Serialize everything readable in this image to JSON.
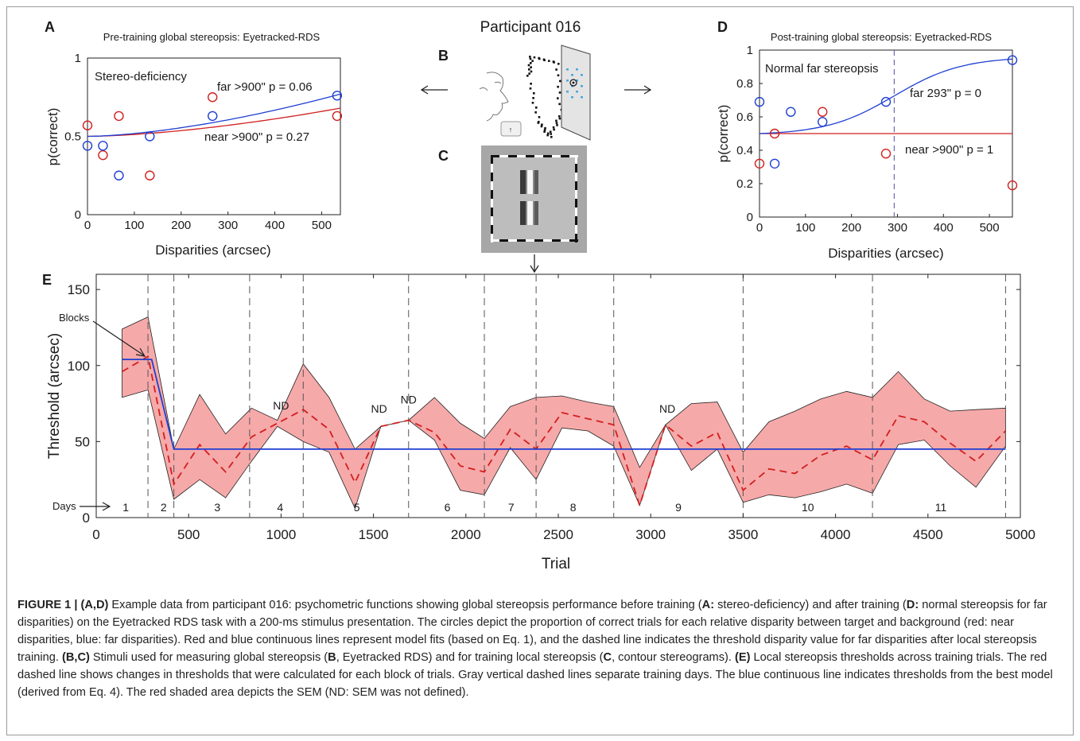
{
  "panel_letters": {
    "a": "A",
    "b": "B",
    "c": "C",
    "d": "D",
    "e": "E"
  },
  "participant_title": "Participant 016",
  "chart_data": [
    {
      "id": "A",
      "type": "scatter",
      "title": "Pre-training global stereopsis: Eyetracked-RDS",
      "xlabel": "Disparities (arcsec)",
      "ylabel": "p(correct)",
      "xlim": [
        0,
        540
      ],
      "ylim": [
        0,
        1
      ],
      "xticks": [
        0,
        100,
        200,
        300,
        400,
        500
      ],
      "yticks": [
        0,
        0.5,
        1
      ],
      "ytick_labels": [
        "0",
        "0.5",
        "1"
      ],
      "annotation": "Stereo-deficiency",
      "far_label": "far >900\"   p = 0.06",
      "near_label": "near >900\"   p = 0.27",
      "threshold_line": null,
      "near_points": [
        [
          0,
          0.57
        ],
        [
          33,
          0.38
        ],
        [
          67,
          0.63
        ],
        [
          133,
          0.25
        ],
        [
          267,
          0.75
        ],
        [
          533,
          0.63
        ]
      ],
      "far_points": [
        [
          0,
          0.44
        ],
        [
          33,
          0.44
        ],
        [
          67,
          0.25
        ],
        [
          133,
          0.5
        ],
        [
          267,
          0.63
        ],
        [
          533,
          0.76
        ]
      ],
      "near_fit": {
        "base": 0.5,
        "max": 0.68
      },
      "far_fit": {
        "base": 0.5,
        "max": 0.77
      },
      "colors": {
        "near": "#d21f1f",
        "far": "#1f3fd2"
      }
    },
    {
      "id": "D",
      "type": "scatter",
      "title": "Post-training global stereopsis: Eyetracked-RDS",
      "xlabel": "Disparities (arcsec)",
      "ylabel": "p(correct)",
      "xlim": [
        0,
        550
      ],
      "ylim": [
        0,
        1
      ],
      "xticks": [
        0,
        100,
        200,
        300,
        400,
        500
      ],
      "yticks": [
        0,
        0.2,
        0.4,
        0.6,
        0.8,
        1
      ],
      "ytick_labels": [
        "0",
        "0.2",
        "0.4",
        "0.6",
        "0.8",
        "1"
      ],
      "annotation": "Normal far stereopsis",
      "far_label": "far 293\"   p = 0",
      "near_label": "near >900\"  p = 1",
      "threshold_line": 293,
      "near_points": [
        [
          0,
          0.32
        ],
        [
          33,
          0.5
        ],
        [
          137,
          0.63
        ],
        [
          275,
          0.38
        ],
        [
          550,
          0.19
        ]
      ],
      "far_points": [
        [
          0,
          0.69
        ],
        [
          33,
          0.32
        ],
        [
          68,
          0.63
        ],
        [
          137,
          0.57
        ],
        [
          275,
          0.69
        ],
        [
          550,
          0.94
        ]
      ],
      "near_fit": {
        "base": 0.5,
        "max": 0.5
      },
      "far_fit": {
        "base": 0.5,
        "max": 0.96,
        "mid": 293
      },
      "colors": {
        "near": "#d21f1f",
        "far": "#1f3fd2"
      }
    },
    {
      "id": "E",
      "type": "line",
      "xlabel": "Trial",
      "ylabel": "Threshold (arcsec)",
      "xlim": [
        0,
        5000
      ],
      "ylim": [
        0,
        160
      ],
      "xticks": [
        0,
        500,
        1000,
        1500,
        2000,
        2500,
        3000,
        3500,
        4000,
        4500,
        5000
      ],
      "yticks": [
        0,
        50,
        100,
        150
      ],
      "day_boundaries": [
        280,
        420,
        830,
        1120,
        1690,
        2100,
        2380,
        2800,
        3500,
        4200,
        4920
      ],
      "day_labels": [
        {
          "label": "1",
          "x": 160
        },
        {
          "label": "2",
          "x": 365
        },
        {
          "label": "3",
          "x": 655
        },
        {
          "label": "4",
          "x": 995
        },
        {
          "label": "5",
          "x": 1410
        },
        {
          "label": "6",
          "x": 1900
        },
        {
          "label": "7",
          "x": 2245
        },
        {
          "label": "8",
          "x": 2580
        },
        {
          "label": "9",
          "x": 3150
        },
        {
          "label": "10",
          "x": 3850
        },
        {
          "label": "11",
          "x": 4570
        }
      ],
      "days_label": "Days",
      "blocks_label": "Blocks",
      "nd_label": "ND",
      "nd_markers": [
        {
          "x": 1000,
          "y": 68
        },
        {
          "x": 1530,
          "y": 66
        },
        {
          "x": 1690,
          "y": 72
        },
        {
          "x": 3090,
          "y": 66
        }
      ],
      "series": [
        {
          "name": "",
          "style": "red-dashed",
          "x": [
            140,
            280,
            420,
            560,
            700,
            840,
            980,
            1120,
            1260,
            1400,
            1540,
            1690,
            1830,
            1970,
            2100,
            2240,
            2380,
            2520,
            2660,
            2800,
            2940,
            3080,
            3220,
            3360,
            3500,
            3640,
            3780,
            3920,
            4060,
            4200,
            4340,
            4480,
            4620,
            4760,
            4920
          ],
          "y": [
            96,
            106,
            22,
            48,
            30,
            53,
            62,
            71,
            58,
            23,
            60,
            64,
            56,
            34,
            30,
            58,
            45,
            69,
            65,
            61,
            8,
            61,
            47,
            56,
            18,
            32,
            29,
            41,
            47,
            38,
            67,
            63,
            49,
            37,
            57
          ],
          "upper": [
            124,
            132,
            45,
            81,
            55,
            72,
            64,
            101,
            79,
            45,
            60,
            64,
            79,
            62,
            52,
            73,
            79,
            80,
            76,
            73,
            33,
            61,
            75,
            76,
            43,
            63,
            70,
            78,
            83,
            79,
            96,
            78,
            70,
            71,
            72
          ],
          "lower": [
            79,
            84,
            12,
            25,
            13,
            37,
            60,
            50,
            43,
            6,
            60,
            64,
            51,
            18,
            15,
            46,
            25,
            59,
            57,
            47,
            8,
            61,
            31,
            45,
            10,
            15,
            13,
            17,
            22,
            16,
            48,
            51,
            34,
            20,
            47
          ]
        },
        {
          "name": "",
          "style": "blue-solid",
          "x": [
            140,
            300,
            420,
            4920
          ],
          "y": [
            104,
            104,
            45,
            45
          ]
        }
      ],
      "colors": {
        "mean": "#d21f1f",
        "sem": "#f6a9a9",
        "model": "#1f3fd2",
        "boundary": "#555555"
      }
    }
  ],
  "caption": {
    "p1": "FIGURE 1 | (A,D)",
    "p2": " Example data from participant 016: psychometric functions showing global stereopsis performance before training (",
    "p3": "A:",
    "p4": " stereo-deficiency) and after training (",
    "p5": "D:",
    "p6": " normal stereopsis for far disparities) on the Eyetracked RDS task with a 200-ms stimulus presentation. The circles depict the proportion of correct trials for each relative disparity between target and background (red: near disparities, blue: far disparities). Red and blue continuous lines represent model fits (based on Eq. 1), and the dashed line indicates the threshold disparity value for far disparities after local stereopsis training. ",
    "p7": "(B,C)",
    "p8": " Stimuli used for measuring global stereopsis (",
    "p9": "B",
    "p10": ", Eyetracked RDS) and for training local stereopsis (",
    "p11": "C",
    "p12": ", contour stereograms). ",
    "p13": "(E)",
    "p14": " Local stereopsis thresholds across training trials. The red dashed line shows changes in thresholds that were calculated for each block of trials. Gray vertical dashed lines separate training days. The blue continuous line indicates thresholds from the best model (derived from Eq. 4). The red shaded area depicts the SEM (ND: SEM was not defined)."
  }
}
